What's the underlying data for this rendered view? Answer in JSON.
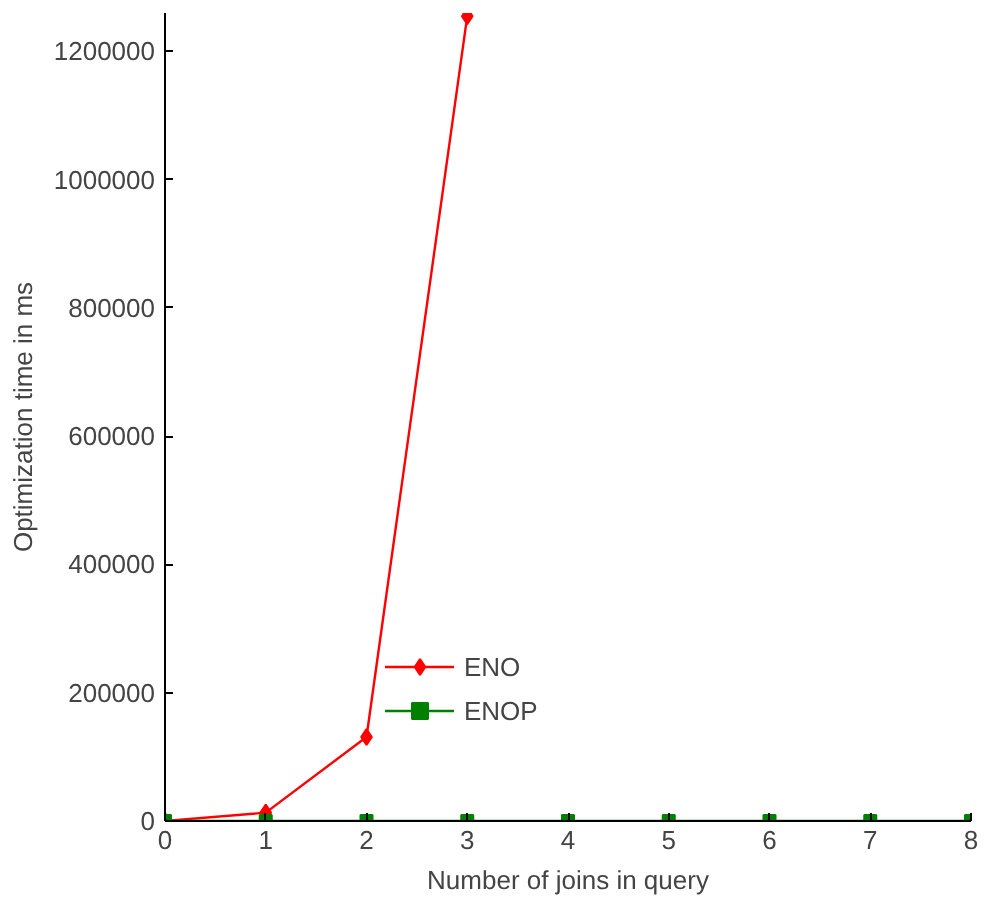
{
  "chart_data": {
    "type": "line",
    "xlabel": "Number of joins in query",
    "ylabel": "Optimization time in ms",
    "x": [
      0,
      1,
      2,
      3,
      4,
      5,
      6,
      7,
      8
    ],
    "series": [
      {
        "name": "ENO",
        "color": "#ff0000",
        "marker": "diamond",
        "x": [
          0,
          1,
          2,
          3
        ],
        "values": [
          0,
          13000,
          131000,
          1255000
        ]
      },
      {
        "name": "ENOP",
        "color": "#008000",
        "marker": "square",
        "values": [
          0,
          0,
          0,
          0,
          0,
          0,
          0,
          0,
          0
        ]
      }
    ],
    "xlim": [
      0,
      8
    ],
    "ylim": [
      0,
      1260000
    ],
    "xticks": [
      0,
      1,
      2,
      3,
      4,
      5,
      6,
      7,
      8
    ],
    "yticks": [
      0,
      200000,
      400000,
      600000,
      800000,
      1000000,
      1200000
    ],
    "grid": false,
    "legend": "center"
  }
}
